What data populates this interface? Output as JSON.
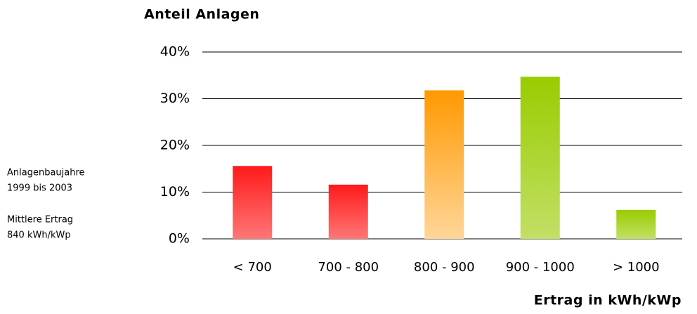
{
  "chart_data": {
    "type": "bar",
    "title": "Anteil Anlagen",
    "x_label": "Ertrag in kWh/kWp",
    "notes": [
      "Anlagenbaujahre",
      "1999 bis 2003",
      "Mittlere Ertrag",
      "840 kWh/kWp"
    ],
    "categories": [
      "< 700",
      "700 - 800",
      "800 - 900",
      "900 - 1000",
      "> 1000"
    ],
    "values": [
      15.6,
      11.6,
      31.8,
      34.7,
      6.2
    ],
    "colors": [
      "#ff1a1a",
      "#ff1a1a",
      "#ff9900",
      "#99cc00",
      "#99cc00"
    ],
    "ylim": [
      0,
      40
    ],
    "yticks": [
      {
        "value": 0,
        "label": "0%"
      },
      {
        "value": 10,
        "label": "10%"
      },
      {
        "value": 20,
        "label": "20%"
      },
      {
        "value": 30,
        "label": "30%"
      },
      {
        "value": 40,
        "label": "40%"
      }
    ],
    "grid": true
  }
}
